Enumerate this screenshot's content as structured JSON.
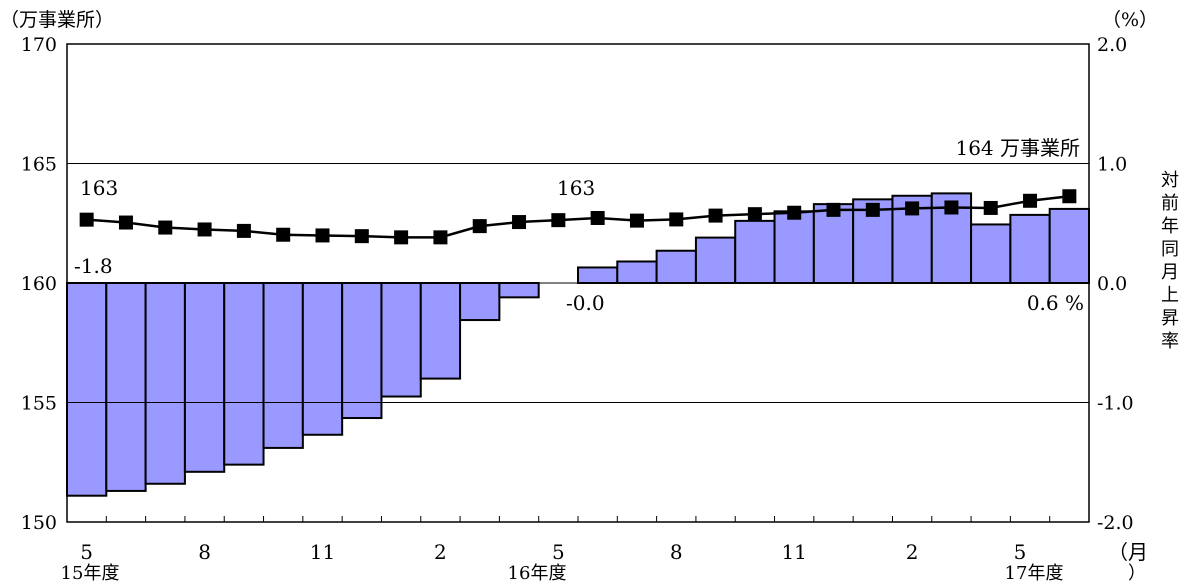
{
  "chart_data": {
    "type": "bar+line",
    "left_axis": {
      "unit_label": "（万事業所）",
      "ylim": [
        150,
        170
      ],
      "ticks": [
        "150",
        "155",
        "160",
        "165",
        "170"
      ]
    },
    "right_axis": {
      "unit_label": "（%）",
      "ylim": [
        -2.0,
        2.0
      ],
      "ticks": [
        "-2.0",
        "-1.0",
        "0.0",
        "1.0",
        "2.0"
      ],
      "title_chars": [
        "対",
        "前",
        "年",
        "同",
        "月",
        "上",
        "昇",
        "率"
      ]
    },
    "x_axis": {
      "tick_labels": [
        "5",
        "8",
        "11",
        "2",
        "5",
        "8",
        "11",
        "2",
        "5"
      ],
      "year_labels": [
        "15年度",
        "16年度",
        "17年度"
      ],
      "unit_label_top": "（月",
      "unit_label_bottom": "）"
    },
    "grid": true,
    "series": [
      {
        "kind": "bar",
        "axis": "right",
        "color": "#9999ff",
        "values": [
          -1.78,
          -1.74,
          -1.68,
          -1.58,
          -1.52,
          -1.38,
          -1.27,
          -1.13,
          -0.95,
          -0.8,
          -0.31,
          -0.12,
          null,
          0.13,
          0.18,
          0.27,
          0.38,
          0.52,
          0.6,
          0.66,
          0.7,
          0.73,
          0.75,
          0.49,
          0.57,
          0.62
        ]
      },
      {
        "kind": "line",
        "axis": "left",
        "color": "#000000",
        "values": [
          162.65,
          162.53,
          162.32,
          162.24,
          162.18,
          162.02,
          161.99,
          161.96,
          161.91,
          161.91,
          162.38,
          162.55,
          162.63,
          162.72,
          162.61,
          162.66,
          162.82,
          162.88,
          162.94,
          163.06,
          163.06,
          163.12,
          163.16,
          163.14,
          163.44,
          163.63
        ]
      }
    ],
    "annotations": [
      {
        "text": "163",
        "kind": "value",
        "index": 0
      },
      {
        "text": "163",
        "kind": "value",
        "index": 12
      },
      {
        "text": "164 万事業所",
        "kind": "value",
        "index": 25
      },
      {
        "text": "-1.8",
        "kind": "rate",
        "index": 0
      },
      {
        "text": "-0.0",
        "kind": "rate",
        "index": 12
      },
      {
        "text": "0.6 %",
        "kind": "rate",
        "index": 25
      }
    ]
  }
}
